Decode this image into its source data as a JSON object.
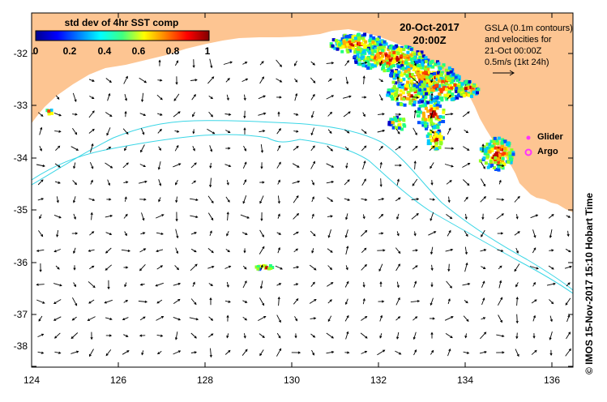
{
  "map": {
    "title_date": "20-Oct-2017",
    "title_time": "20:00Z",
    "colorbar": {
      "title": "std dev of 4hr SST comp",
      "ticks": [
        "0",
        "0.2",
        "0.4",
        "0.6",
        "0.8",
        "1"
      ]
    },
    "legend": {
      "gsla_text": "GSLA (0.1m contours)\nand velocities for\n21-Oct 00:00Z\n0.5m/s (1kt 24h)",
      "glider_label": "Glider",
      "argo_label": "Argo",
      "glider_color": "#ff33ff",
      "argo_color": "#ff33ff"
    },
    "x_ticks": [
      "124",
      "126",
      "128",
      "130",
      "132",
      "134",
      "136"
    ],
    "y_ticks": [
      "-32",
      "-33",
      "-34",
      "-35",
      "-36",
      "-37",
      "-38"
    ],
    "credit": "© IMOS 15-Nov-2017 15:10 Hobart Time",
    "colors": {
      "land": "#fdc592",
      "contour": "#3ad6e6",
      "vector": "#000000"
    }
  }
}
